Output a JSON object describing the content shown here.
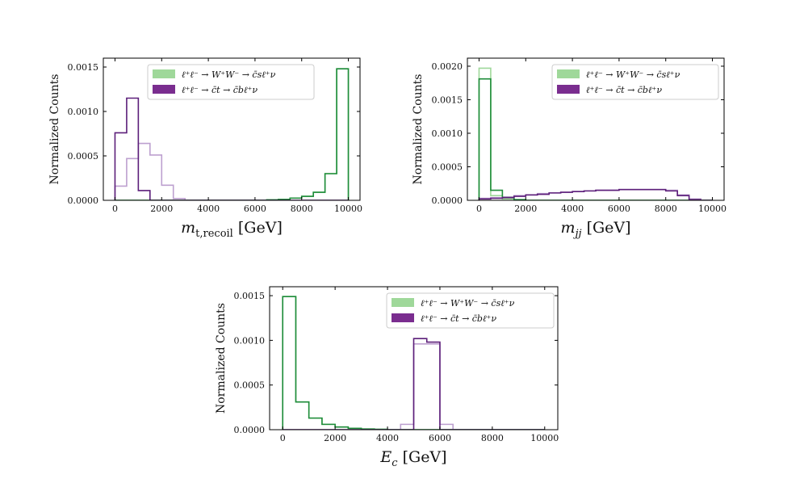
{
  "colors": {
    "ww_fill": "#9fd89a",
    "ww_line": "#1e8c3a",
    "top_fill": "#7a2d8f",
    "top_line": "#bda0cf",
    "top_dark": "#5c1f7a"
  },
  "chart_data": [
    {
      "type": "bar",
      "id": "mt",
      "ylabel": "Normalized Counts",
      "xlabel_main": "m",
      "xlabel_sub": "t,recoil",
      "xlabel_unit": " [GeV]",
      "xlim": [
        -500,
        10500
      ],
      "ylim": [
        0,
        0.0016
      ],
      "xticks": [
        0,
        2000,
        4000,
        6000,
        8000,
        10000
      ],
      "xtick_labels": [
        "0",
        "2000",
        "4000",
        "6000",
        "8000",
        "10000"
      ],
      "yticks": [
        0,
        0.0005,
        0.001,
        0.0015
      ],
      "ytick_labels": [
        "0.0000",
        "0.0005",
        "0.0010",
        "0.0015"
      ],
      "bin_edges": [
        0,
        500,
        1000,
        1500,
        2000,
        2500,
        3000,
        3500,
        4000,
        4500,
        5000,
        5500,
        6000,
        6500,
        7000,
        7500,
        8000,
        8500,
        9000,
        9500,
        10000
      ],
      "series": [
        {
          "name": "ww_light",
          "values": [
            0,
            0,
            0,
            0,
            0,
            0,
            0,
            0,
            0,
            0,
            0,
            0,
            0,
            5e-06,
            1e-05,
            2.5e-05,
            4.5e-05,
            9e-05,
            0.0003,
            0.00148
          ]
        },
        {
          "name": "ww_dark",
          "values": [
            0,
            0,
            0,
            0,
            0,
            0,
            0,
            0,
            0,
            0,
            0,
            0,
            0,
            5e-06,
            1e-05,
            2.5e-05,
            4.5e-05,
            9e-05,
            0.0003,
            0.00148
          ]
        },
        {
          "name": "top_light",
          "values": [
            0.00016,
            0.00047,
            0.00064,
            0.00051,
            0.00017,
            2e-05,
            0,
            0,
            0,
            0,
            0,
            0,
            0,
            0,
            0,
            0,
            0,
            0,
            0,
            0
          ]
        },
        {
          "name": "top_dark",
          "values": [
            0.00076,
            0.00115,
            0.00011,
            0,
            0,
            0,
            0,
            0,
            0,
            0,
            0,
            0,
            0,
            0,
            0,
            0,
            0,
            0,
            0,
            0
          ]
        }
      ],
      "legend": [
        {
          "label": "ℓ⁺ℓ⁻ → W⁺W⁻ → c̄sℓ⁺ν",
          "color_key": "ww_fill"
        },
        {
          "label": "ℓ⁺ℓ⁻ → c̄t → c̄bℓ⁺ν",
          "color_key": "top_fill"
        }
      ]
    },
    {
      "type": "bar",
      "id": "mjj",
      "ylabel": "Normalized Counts",
      "xlabel_main": "m",
      "xlabel_sub": "jj",
      "xlabel_unit": " [GeV]",
      "xlim": [
        -500,
        10500
      ],
      "ylim": [
        0,
        0.00212
      ],
      "xticks": [
        0,
        2000,
        4000,
        6000,
        8000,
        10000
      ],
      "xtick_labels": [
        "0",
        "2000",
        "4000",
        "6000",
        "8000",
        "10000"
      ],
      "yticks": [
        0,
        0.0005,
        0.001,
        0.0015,
        0.002
      ],
      "ytick_labels": [
        "0.0000",
        "0.0005",
        "0.0010",
        "0.0015",
        "0.0020"
      ],
      "bin_edges": [
        0,
        500,
        1000,
        1500,
        2000,
        2500,
        3000,
        3500,
        4000,
        4500,
        5000,
        5500,
        6000,
        6500,
        7000,
        7500,
        8000,
        8500,
        9000,
        9500,
        10000
      ],
      "series": [
        {
          "name": "ww_light",
          "values": [
            0.00197,
            7e-05,
            2e-05,
            0,
            0,
            0,
            0,
            0,
            0,
            0,
            0,
            0,
            0,
            0,
            0,
            0,
            0,
            0,
            0,
            0
          ]
        },
        {
          "name": "ww_dark",
          "values": [
            0.00181,
            0.00015,
            4e-05,
            1e-05,
            0,
            0,
            0,
            0,
            0,
            0,
            0,
            0,
            0,
            0,
            0,
            0,
            0,
            0,
            0,
            0
          ]
        },
        {
          "name": "top_light",
          "values": [
            3e-05,
            4e-05,
            5e-05,
            7e-05,
            8e-05,
            0.0001,
            0.00011,
            0.00012,
            0.00013,
            0.00014,
            0.00015,
            0.00015,
            0.00016,
            0.00016,
            0.00016,
            0.00016,
            0.00015,
            8e-05,
            2e-05,
            0
          ]
        },
        {
          "name": "top_dark",
          "values": [
            2e-05,
            3e-05,
            4e-05,
            6e-05,
            8e-05,
            9e-05,
            0.00011,
            0.00012,
            0.00013,
            0.00014,
            0.00015,
            0.00015,
            0.00016,
            0.00016,
            0.00016,
            0.00016,
            0.00014,
            7e-05,
            1e-05,
            0
          ]
        }
      ],
      "legend": [
        {
          "label": "ℓ⁺ℓ⁻ → W⁺W⁻ → c̄sℓ⁺ν",
          "color_key": "ww_fill"
        },
        {
          "label": "ℓ⁺ℓ⁻ → c̄t → c̄bℓ⁺ν",
          "color_key": "top_fill"
        }
      ]
    },
    {
      "type": "bar",
      "id": "ec",
      "ylabel": "Normalized Counts",
      "xlabel_main": "E",
      "xlabel_sub": "c",
      "xlabel_unit": " [GeV]",
      "xlim": [
        -500,
        10500
      ],
      "ylim": [
        0,
        0.0016
      ],
      "xticks": [
        0,
        2000,
        4000,
        6000,
        8000,
        10000
      ],
      "xtick_labels": [
        "0",
        "2000",
        "4000",
        "6000",
        "8000",
        "10000"
      ],
      "yticks": [
        0,
        0.0005,
        0.001,
        0.0015
      ],
      "ytick_labels": [
        "0.0000",
        "0.0005",
        "0.0010",
        "0.0015"
      ],
      "bin_edges": [
        0,
        500,
        1000,
        1500,
        2000,
        2500,
        3000,
        3500,
        4000,
        4500,
        5000,
        5500,
        6000,
        6500,
        7000,
        7500,
        8000,
        8500,
        9000,
        9500,
        10000
      ],
      "series": [
        {
          "name": "ww_light",
          "values": [
            0.00149,
            0.00031,
            0.00013,
            6e-05,
            3e-05,
            1.5e-05,
            8e-06,
            4e-06,
            0,
            0,
            0,
            0,
            0,
            0,
            0,
            0,
            0,
            0,
            0,
            0
          ]
        },
        {
          "name": "ww_dark",
          "values": [
            0.00149,
            0.00031,
            0.00013,
            6e-05,
            3e-05,
            1.5e-05,
            8e-06,
            4e-06,
            0,
            0,
            0,
            0,
            0,
            0,
            0,
            0,
            0,
            0,
            0,
            0
          ]
        },
        {
          "name": "top_light",
          "values": [
            0,
            0,
            0,
            0,
            0,
            0,
            0,
            0,
            0,
            6e-05,
            0.00096,
            0.00096,
            6e-05,
            0,
            0,
            0,
            0,
            0,
            0,
            0
          ]
        },
        {
          "name": "top_dark",
          "values": [
            0,
            0,
            0,
            0,
            0,
            0,
            0,
            0,
            0,
            0,
            0.00102,
            0.00098,
            0,
            0,
            0,
            0,
            0,
            0,
            0,
            0
          ]
        }
      ],
      "legend": [
        {
          "label": "ℓ⁺ℓ⁻ → W⁺W⁻ → c̄sℓ⁺ν",
          "color_key": "ww_fill"
        },
        {
          "label": "ℓ⁺ℓ⁻ → c̄t → c̄bℓ⁺ν",
          "color_key": "top_fill"
        }
      ]
    }
  ]
}
